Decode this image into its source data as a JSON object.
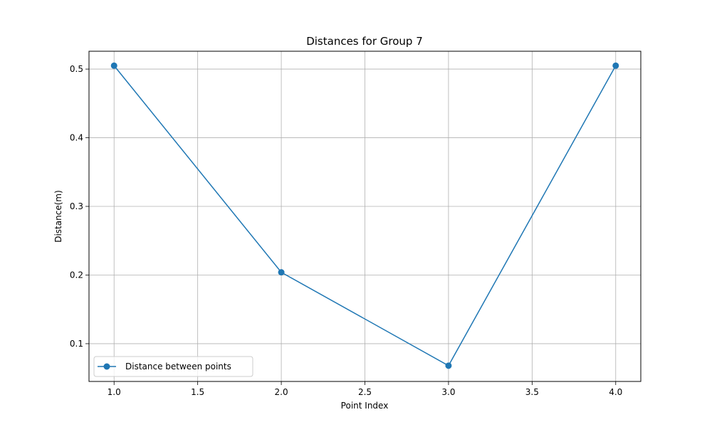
{
  "chart_data": {
    "type": "line",
    "title": "Distances for Group 7",
    "xlabel": "Point Index",
    "ylabel": "Distance(m)",
    "xlim": [
      0.85,
      4.15
    ],
    "ylim": [
      0.045,
      0.526
    ],
    "xticks": [
      1.0,
      1.5,
      2.0,
      2.5,
      3.0,
      3.5,
      4.0
    ],
    "xtick_labels": [
      "1.0",
      "1.5",
      "2.0",
      "2.5",
      "3.0",
      "3.5",
      "4.0"
    ],
    "yticks": [
      0.1,
      0.2,
      0.3,
      0.4,
      0.5
    ],
    "ytick_labels": [
      "0.1",
      "0.2",
      "0.3",
      "0.4",
      "0.5"
    ],
    "grid": true,
    "legend_position": "lower-left",
    "series": [
      {
        "name": "Distance between points",
        "color": "#1f77b4",
        "marker": "circle",
        "x": [
          1.0,
          2.0,
          3.0,
          4.0
        ],
        "y": [
          0.505,
          0.204,
          0.068,
          0.505
        ]
      }
    ]
  }
}
